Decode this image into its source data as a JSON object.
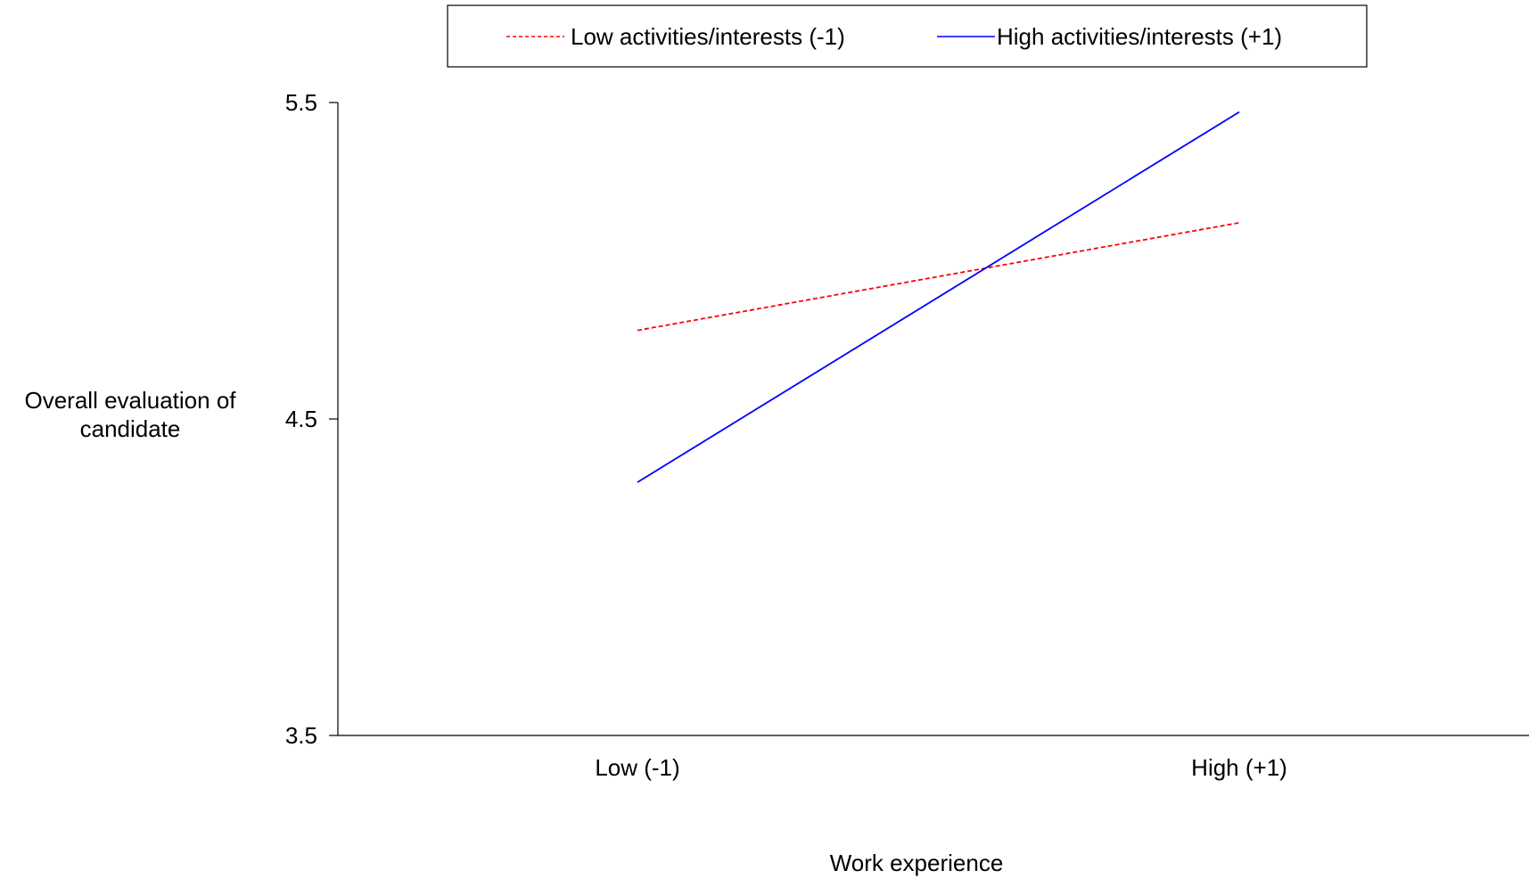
{
  "chart_data": {
    "type": "line",
    "title": "",
    "xlabel": "Work experience",
    "ylabel_lines": [
      "Overall evaluation of",
      "candidate"
    ],
    "categories": [
      "Low (-1)",
      "High (+1)"
    ],
    "y_ticks": [
      "5.5",
      "4.5",
      "3.5"
    ],
    "ylim": [
      3.5,
      5.5
    ],
    "grid": false,
    "legend_position": "top",
    "series": [
      {
        "name": "Low activities/interests (-1)",
        "values": [
          4.78,
          5.12
        ],
        "color": "#ff0000",
        "style": "dashed"
      },
      {
        "name": "High activities/interests (+1)",
        "values": [
          4.3,
          5.47
        ],
        "color": "#0000ff",
        "style": "solid"
      }
    ]
  }
}
